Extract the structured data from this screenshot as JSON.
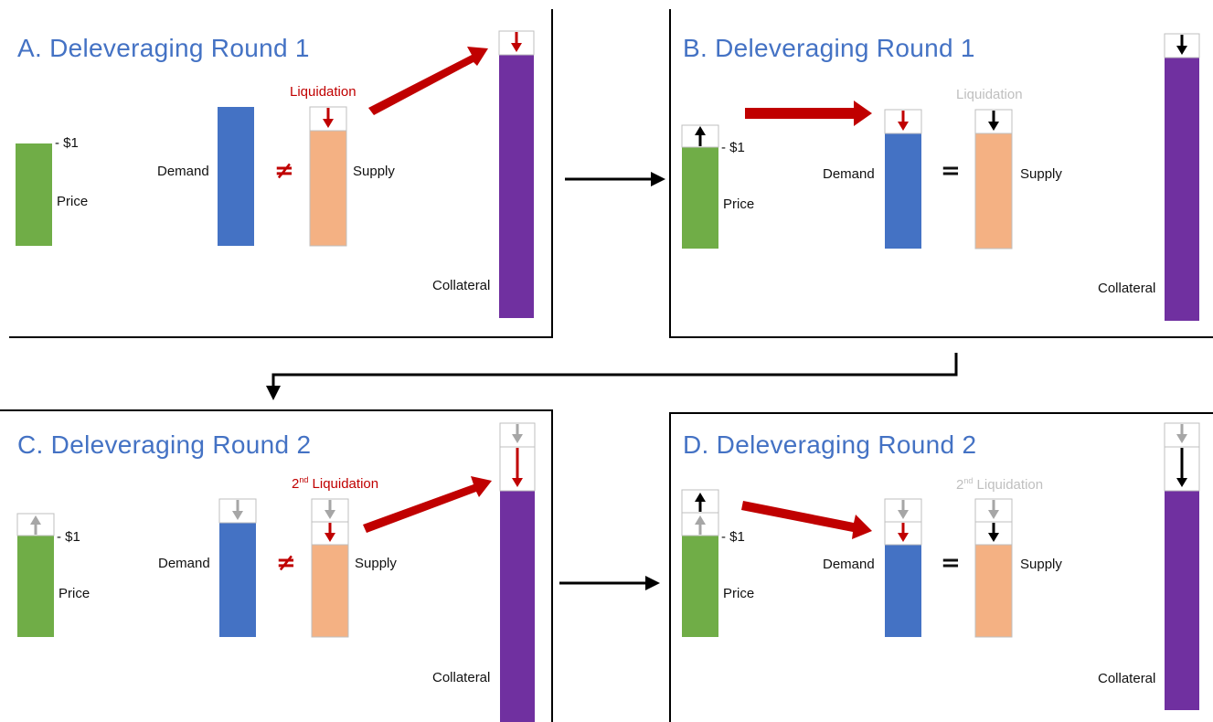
{
  "colors": {
    "title": "#4472c4",
    "price": "#70ad47",
    "demand": "#4472c4",
    "supply": "#f4b183",
    "collateral": "#7030a0",
    "arrow_red": "#c00000",
    "arrow_gray": "#a6a6a6",
    "arrow_black": "#000000",
    "label_gray": "#bfbfbf"
  },
  "panels": {
    "a": {
      "title": "A. Deleveraging Round 1",
      "price_label": "Price",
      "price_tick": "- $1",
      "demand_label": "Demand",
      "relation": "≠",
      "supply_label": "Supply",
      "liquidation": "Liquidation",
      "collateral_label": "Collateral"
    },
    "b": {
      "title": "B. Deleveraging Round 1",
      "price_label": "Price",
      "price_tick": "- $1",
      "demand_label": "Demand",
      "relation": "=",
      "supply_label": "Supply",
      "liquidation": "Liquidation",
      "collateral_label": "Collateral"
    },
    "c": {
      "title": "C. Deleveraging Round 2",
      "price_label": "Price",
      "price_tick": "- $1",
      "demand_label": "Demand",
      "relation": "≠",
      "supply_label": "Supply",
      "liquidation_ord": "2",
      "liquidation_sup": "nd",
      "liquidation": " Liquidation",
      "collateral_label": "Collateral"
    },
    "d": {
      "title": "D. Deleveraging Round 2",
      "price_label": "Price",
      "price_tick": "- $1",
      "demand_label": "Demand",
      "relation": "=",
      "supply_label": "Supply",
      "liquidation_ord": "2",
      "liquidation_sup": "nd",
      "liquidation": " Liquidation",
      "collateral_label": "Collateral"
    }
  }
}
